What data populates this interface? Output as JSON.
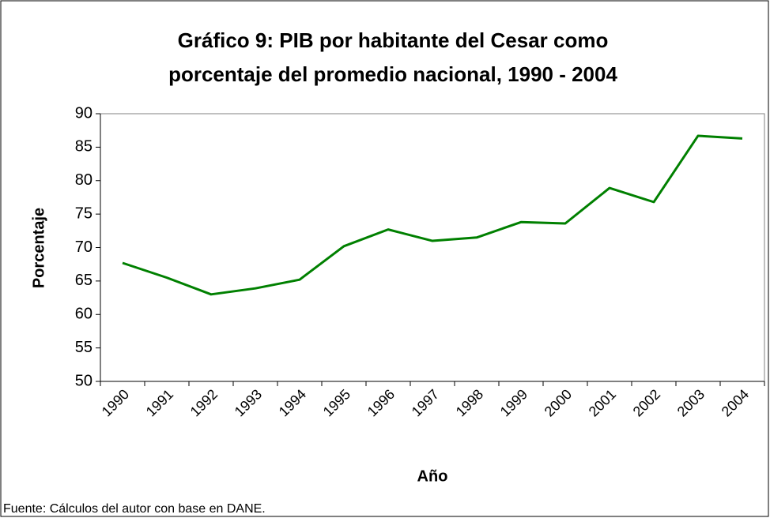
{
  "chart_data": {
    "type": "line",
    "title": [
      "Gráfico 9: PIB por habitante del Cesar como",
      "porcentaje del promedio nacional, 1990 - 2004"
    ],
    "x_label": "Año",
    "y_label": "Porcentaje",
    "source": "Fuente: Cálculos del autor con base en DANE.",
    "categories": [
      "1990",
      "1991",
      "1992",
      "1993",
      "1994",
      "1995",
      "1996",
      "1997",
      "1998",
      "1999",
      "2000",
      "2001",
      "2002",
      "2003",
      "2004"
    ],
    "series": [
      {
        "name": "PIB por habitante",
        "color": "#008000",
        "values": [
          67.7,
          65.5,
          63.0,
          63.9,
          65.2,
          70.2,
          72.7,
          71.0,
          71.5,
          73.8,
          73.6,
          78.9,
          76.8,
          86.7,
          86.3
        ]
      }
    ],
    "ylim": [
      50,
      90
    ],
    "yticks": [
      50,
      55,
      60,
      65,
      70,
      75,
      80,
      85,
      90
    ],
    "grid": false
  }
}
